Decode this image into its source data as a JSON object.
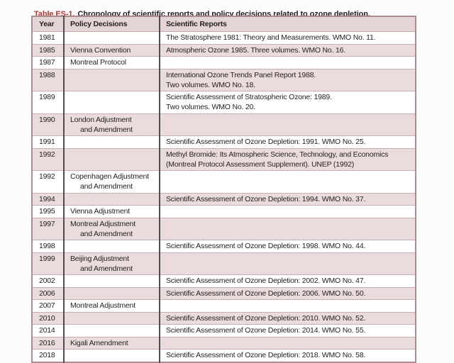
{
  "caption": {
    "label": "Table ES-1.",
    "text": "Chronology of scientific reports and policy decisions related to ozone depletion."
  },
  "colors": {
    "caption_accent": "#b5362e",
    "header_bg": "#e4d4d5",
    "row_shaded_bg": "#eadcdd",
    "row_plain_bg": "#ffffff",
    "outer_border": "#ab8d8f",
    "row_border": "#c9afb1",
    "column_border": "#4c4d4f",
    "text": "#231f20"
  },
  "table": {
    "columns": [
      "Year",
      "Policy Decisions",
      "Scientific Reports"
    ],
    "rows": [
      {
        "year": "1981",
        "policy": [],
        "report": [
          "The Stratosphere 1981: Theory and Measurements. WMO No. 11."
        ],
        "shaded": false
      },
      {
        "year": "1985",
        "policy": [
          "Vienna Convention"
        ],
        "report": [
          "Atmospheric Ozone 1985. Three volumes. WMO No. 16."
        ],
        "shaded": true
      },
      {
        "year": "1987",
        "policy": [
          "Montreal Protocol"
        ],
        "report": [],
        "shaded": false
      },
      {
        "year": "1988",
        "policy": [],
        "report": [
          "International Ozone Trends Panel Report 1988.",
          "Two volumes. WMO No. 18."
        ],
        "shaded": true
      },
      {
        "year": "1989",
        "policy": [],
        "report": [
          "Scientific Assessment of Stratospheric Ozone: 1989.",
          "Two volumes. WMO No. 20."
        ],
        "shaded": false
      },
      {
        "year": "1990",
        "policy": [
          "London Adjustment",
          "and Amendment"
        ],
        "report": [],
        "shaded": true
      },
      {
        "year": "1991",
        "policy": [],
        "report": [
          "Scientific Assessment of Ozone Depletion: 1991. WMO No. 25."
        ],
        "shaded": false
      },
      {
        "year": "1992",
        "policy": [],
        "report": [
          "Methyl Bromide: Its Atmospheric Science, Technology, and Economics",
          "(Montreal Protocol Assessment Supplement). UNEP (1992)"
        ],
        "shaded": true
      },
      {
        "year": "1992",
        "policy": [
          "Copenhagen Adjustment",
          "and Amendment"
        ],
        "report": [],
        "shaded": false
      },
      {
        "year": "1994",
        "policy": [],
        "report": [
          "Scientific Assessment of Ozone Depletion: 1994. WMO No. 37."
        ],
        "shaded": true
      },
      {
        "year": "1995",
        "policy": [
          "Vienna Adjustment"
        ],
        "report": [],
        "shaded": false
      },
      {
        "year": "1997",
        "policy": [
          "Montreal Adjustment",
          "and Amendment"
        ],
        "report": [],
        "shaded": true
      },
      {
        "year": "1998",
        "policy": [],
        "report": [
          "Scientific Assessment of Ozone Depletion: 1998. WMO No. 44."
        ],
        "shaded": false
      },
      {
        "year": "1999",
        "policy": [
          "Beijing Adjustment",
          "and Amendment"
        ],
        "report": [],
        "shaded": true
      },
      {
        "year": "2002",
        "policy": [],
        "report": [
          "Scientific Assessment of Ozone Depletion: 2002. WMO No. 47."
        ],
        "shaded": false
      },
      {
        "year": "2006",
        "policy": [],
        "report": [
          "Scientific Assessment of Ozone Depletion: 2006. WMO No. 50."
        ],
        "shaded": true
      },
      {
        "year": "2007",
        "policy": [
          "Montreal Adjustment"
        ],
        "report": [],
        "shaded": false
      },
      {
        "year": "2010",
        "policy": [],
        "report": [
          "Scientific Assessment of Ozone Depletion: 2010. WMO No. 52."
        ],
        "shaded": true
      },
      {
        "year": "2014",
        "policy": [],
        "report": [
          "Scientific Assessment of Ozone Depletion: 2014. WMO No. 55."
        ],
        "shaded": false
      },
      {
        "year": "2016",
        "policy": [
          "Kigali Amendment"
        ],
        "report": [],
        "shaded": true
      },
      {
        "year": "2018",
        "policy": [],
        "report": [
          "Scientific Assessment of Ozone Depletion: 2018. WMO No. 58."
        ],
        "shaded": false
      }
    ]
  }
}
